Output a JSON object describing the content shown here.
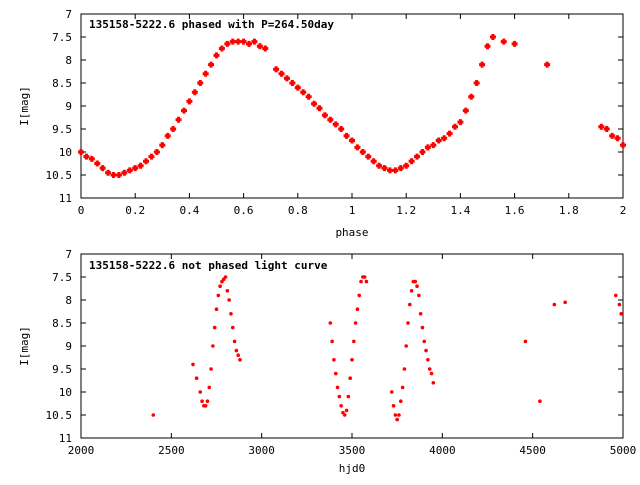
{
  "chart_data": [
    {
      "type": "scatter",
      "title": "135158-5222.6 phased with P=264.50day",
      "xlabel": "phase",
      "ylabel": "I[mag]",
      "xlim": [
        0,
        2
      ],
      "ylim": [
        7,
        11
      ],
      "y_inverted": true,
      "xticks": [
        "0",
        "0.2",
        "0.4",
        "0.6",
        "0.8",
        "1",
        "1.2",
        "1.4",
        "1.6",
        "1.8",
        "2"
      ],
      "yticks": [
        "7",
        "7.5",
        "8",
        "8.5",
        "9",
        "9.5",
        "10",
        "10.5",
        "11"
      ],
      "marker_color": "#ff0000",
      "marker": "plus",
      "series": [
        {
          "x": [
            0.0,
            0.02,
            0.04,
            0.06,
            0.08,
            0.1,
            0.12,
            0.14,
            0.16,
            0.18,
            0.2,
            0.22,
            0.24,
            0.26,
            0.28,
            0.3,
            0.32,
            0.34,
            0.36,
            0.38,
            0.4,
            0.42,
            0.44,
            0.46,
            0.48,
            0.5,
            0.52,
            0.54,
            0.56,
            0.58,
            0.6,
            0.62,
            0.64,
            0.66,
            0.68,
            0.72,
            0.74,
            0.76,
            0.78,
            0.8,
            0.82,
            0.84,
            0.86,
            0.88,
            0.9,
            0.92,
            0.94,
            0.96,
            0.98,
            1.0,
            1.02,
            1.04,
            1.06,
            1.08,
            1.1,
            1.12,
            1.14,
            1.16,
            1.18,
            1.2,
            1.22,
            1.24,
            1.26,
            1.28,
            1.3,
            1.32,
            1.34,
            1.36,
            1.38,
            1.4,
            1.42,
            1.44,
            1.46,
            1.48,
            1.5,
            1.52,
            1.56,
            1.6,
            1.72,
            1.92,
            1.94,
            1.96,
            1.98,
            2.0
          ],
          "y": [
            10.0,
            10.1,
            10.15,
            10.25,
            10.35,
            10.45,
            10.5,
            10.5,
            10.45,
            10.4,
            10.35,
            10.3,
            10.2,
            10.1,
            10.0,
            9.85,
            9.65,
            9.5,
            9.3,
            9.1,
            8.9,
            8.7,
            8.5,
            8.3,
            8.1,
            7.9,
            7.75,
            7.65,
            7.6,
            7.6,
            7.6,
            7.65,
            7.6,
            7.7,
            7.75,
            8.2,
            8.3,
            8.4,
            8.5,
            8.6,
            8.7,
            8.8,
            8.95,
            9.05,
            9.2,
            9.3,
            9.4,
            9.5,
            9.65,
            9.75,
            9.9,
            10.0,
            10.1,
            10.2,
            10.3,
            10.35,
            10.4,
            10.4,
            10.35,
            10.3,
            10.2,
            10.1,
            10.0,
            9.9,
            9.85,
            9.75,
            9.7,
            9.6,
            9.45,
            9.35,
            9.1,
            8.8,
            8.5,
            8.1,
            7.7,
            7.5,
            7.6,
            7.65,
            8.1,
            9.45,
            9.5,
            9.65,
            9.7,
            9.85
          ]
        }
      ]
    },
    {
      "type": "scatter",
      "title": "135158-5222.6 not phased light curve",
      "xlabel": "hjd0",
      "ylabel": "I[mag]",
      "xlim": [
        2000,
        5000
      ],
      "ylim": [
        7,
        11
      ],
      "y_inverted": true,
      "xticks": [
        "2000",
        "2500",
        "3000",
        "3500",
        "4000",
        "4500",
        "5000"
      ],
      "yticks": [
        "7",
        "7.5",
        "8",
        "8.5",
        "9",
        "9.5",
        "10",
        "10.5",
        "11"
      ],
      "marker_color": "#ff0000",
      "marker": "dot",
      "series": [
        {
          "x": [
            2400,
            2620,
            2640,
            2660,
            2670,
            2680,
            2690,
            2700,
            2710,
            2720,
            2730,
            2740,
            2750,
            2760,
            2770,
            2780,
            2790,
            2800,
            2810,
            2820,
            2830,
            2840,
            2850,
            2860,
            2870,
            2880,
            3380,
            3390,
            3400,
            3410,
            3420,
            3430,
            3440,
            3450,
            3460,
            3470,
            3480,
            3490,
            3500,
            3510,
            3520,
            3530,
            3540,
            3550,
            3560,
            3570,
            3580,
            3720,
            3730,
            3740,
            3750,
            3760,
            3770,
            3780,
            3790,
            3800,
            3810,
            3820,
            3830,
            3840,
            3850,
            3860,
            3870,
            3880,
            3890,
            3900,
            3910,
            3920,
            3930,
            3940,
            3950,
            4460,
            4540,
            4620,
            4680,
            4960,
            4980,
            4990
          ],
          "y": [
            10.5,
            9.4,
            9.7,
            10.0,
            10.2,
            10.3,
            10.3,
            10.2,
            9.9,
            9.5,
            9.0,
            8.6,
            8.2,
            7.9,
            7.7,
            7.6,
            7.55,
            7.5,
            7.8,
            8.0,
            8.3,
            8.6,
            8.9,
            9.1,
            9.2,
            9.3,
            8.5,
            8.9,
            9.3,
            9.6,
            9.9,
            10.1,
            10.3,
            10.45,
            10.5,
            10.4,
            10.1,
            9.7,
            9.3,
            8.9,
            8.5,
            8.2,
            7.9,
            7.6,
            7.5,
            7.5,
            7.6,
            10.0,
            10.3,
            10.5,
            10.6,
            10.5,
            10.2,
            9.9,
            9.5,
            9.0,
            8.5,
            8.1,
            7.8,
            7.6,
            7.6,
            7.7,
            7.9,
            8.3,
            8.6,
            8.9,
            9.1,
            9.3,
            9.5,
            9.6,
            9.8,
            8.9,
            10.2,
            8.1,
            8.05,
            7.9,
            8.1,
            8.3
          ]
        }
      ]
    }
  ]
}
